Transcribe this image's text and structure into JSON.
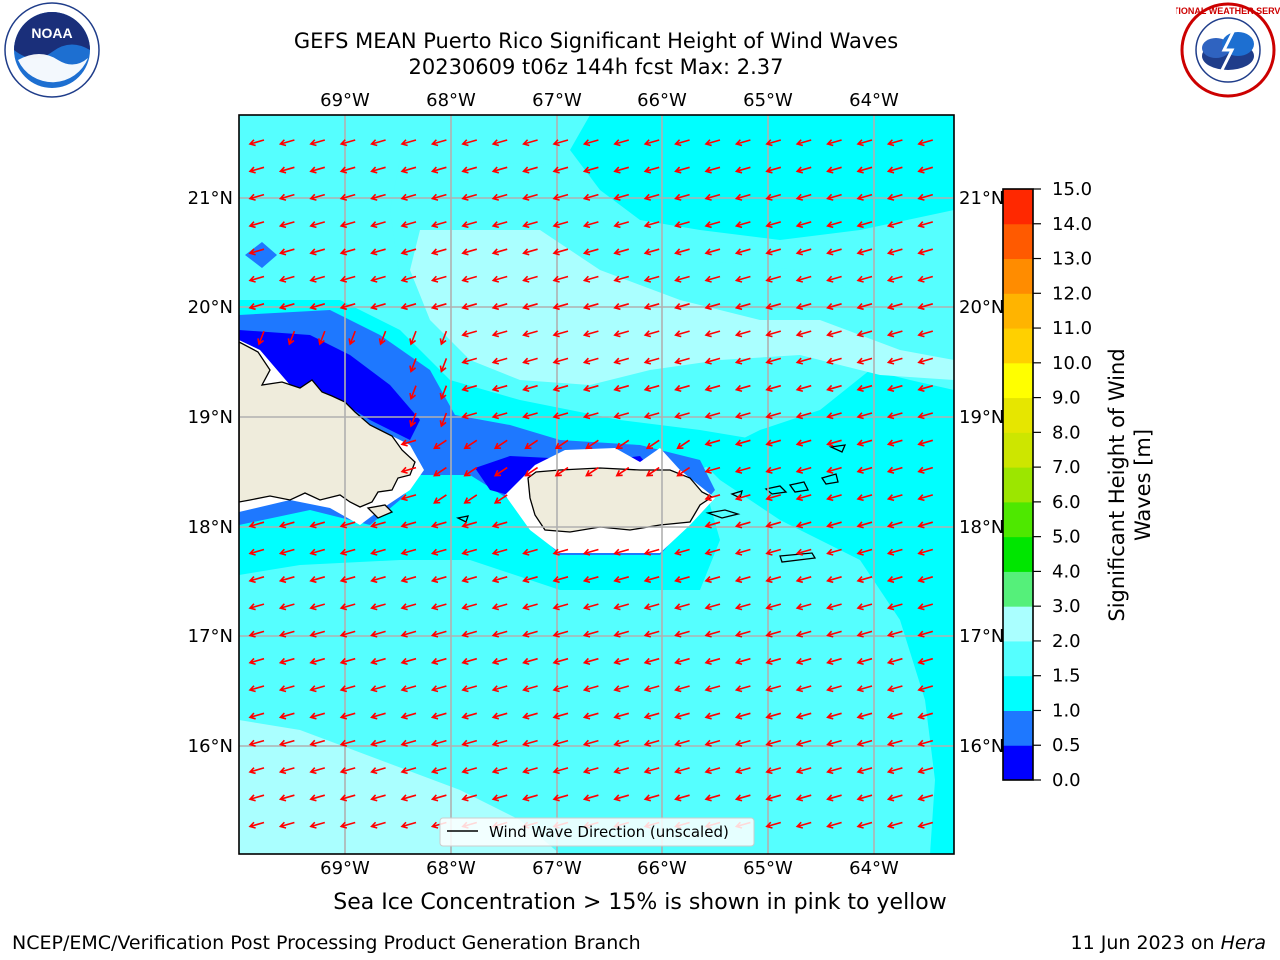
{
  "header": {
    "title_line1": "GEFS MEAN Puerto Rico Significant Height of Wind Waves",
    "title_line2": "20230609 t06z 144h fcst   Max: 2.37"
  },
  "logos": {
    "left": {
      "name": "NOARA logo",
      "text": "NOAA",
      "ring_text": "NATIONAL OCEANIC AND ATMOSPHERIC ADMINISTRATION · U.S. DEPARTMENT OF COMMERCE"
    },
    "right": {
      "name": "NWS logo",
      "ring_text": "NATIONAL WEATHER SERVICE"
    }
  },
  "map": {
    "lon_labels": [
      "69°W",
      "68°W",
      "67°W",
      "66°W",
      "65°W",
      "64°W"
    ],
    "lat_labels": [
      "21°N",
      "20°N",
      "19°N",
      "18°N",
      "17°N",
      "16°N"
    ],
    "legend_label": "Wind Wave Direction (unscaled)",
    "arrow_color": "#ff0000",
    "land_color": "#efecdc"
  },
  "colorbar": {
    "title_line1": "Significant Height of Wind",
    "title_line2": "Waves [m]",
    "ticks": [
      "0.0",
      "0.5",
      "1.0",
      "1.5",
      "2.0",
      "3.0",
      "4.0",
      "5.0",
      "6.0",
      "7.0",
      "8.0",
      "9.0",
      "10.0",
      "11.0",
      "12.0",
      "13.0",
      "14.0",
      "15.0"
    ],
    "colors": [
      "#0000ff",
      "#1e78ff",
      "#00ffff",
      "#55ffff",
      "#aaffff",
      "#55f07a",
      "#00e600",
      "#4ee800",
      "#9ce600",
      "#cde600",
      "#e6e600",
      "#ffff00",
      "#ffd000",
      "#ffb400",
      "#ff8c00",
      "#ff5a00",
      "#ff2800"
    ]
  },
  "footer": {
    "note": "Sea Ice Concentration > 15% is shown in pink to yellow",
    "credit": "NCEP/EMC/Verification Post Processing Product Generation Branch",
    "date": "11 Jun 2023 on ",
    "machine": "Hera"
  }
}
